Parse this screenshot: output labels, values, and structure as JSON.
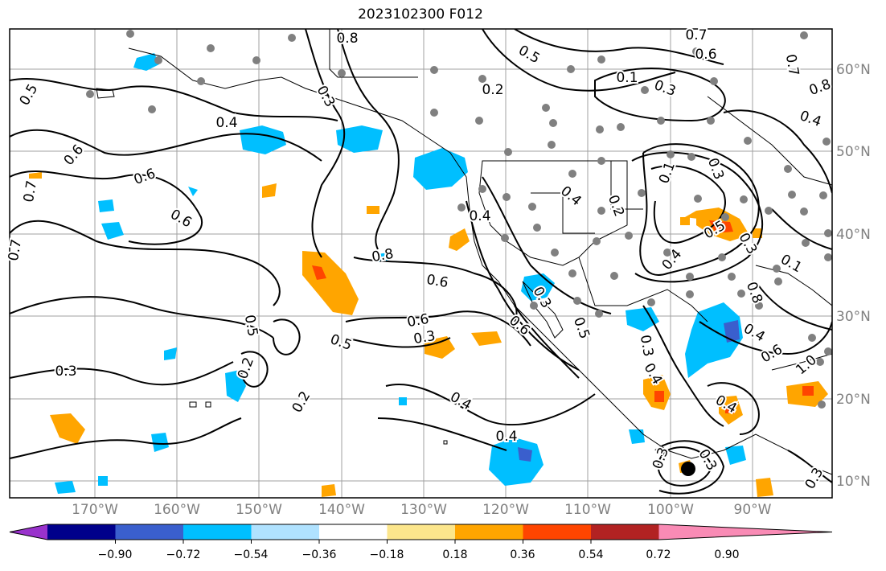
{
  "title": "2023102300 F012",
  "lat_labels": [
    "60°N",
    "50°N",
    "40°N",
    "30°N",
    "20°N",
    "10°N"
  ],
  "lon_labels": [
    "170°W",
    "160°W",
    "150°W",
    "140°W",
    "130°W",
    "120°W",
    "110°W",
    "100°W",
    "90°W"
  ],
  "colorbar": {
    "ticks": [
      "−0.90",
      "−0.72",
      "−0.54",
      "−0.36",
      "−0.18",
      "0.18",
      "0.36",
      "0.54",
      "0.72",
      "0.90"
    ],
    "colors": [
      "#9932cc",
      "#00008b",
      "#3a5fcd",
      "#00bfff",
      "#b0e2ff",
      "#ffffff",
      "#fce68c",
      "#ffa500",
      "#ff4500",
      "#b22222",
      "#f98bb5"
    ]
  },
  "contour_labels": [
    "0.8",
    "0.7",
    "0.6",
    "0.5",
    "0.4",
    "0.3",
    "0.2",
    "0.1",
    "0.8",
    "0.7",
    "0.6",
    "0.6",
    "0.6",
    "0.7",
    "0.7",
    "0.5",
    "0.3",
    "0.8",
    "0.6",
    "0.6",
    "0.5",
    "0.3",
    "0.3",
    "0.4",
    "0.4",
    "0.5",
    "0.2",
    "0.2",
    "0.6",
    "0.5",
    "0.3",
    "0.4",
    "0.4",
    "0.6",
    "0.4",
    "0.3",
    "0.3",
    "0.4",
    "0.3",
    "0.1",
    "0.3",
    "0.2",
    "0.4",
    "0.3",
    "0.4",
    "0.1",
    "1.0",
    "0.8",
    "0.5",
    "0.4",
    "0.3"
  ],
  "colors": {
    "land_line": "#000000",
    "grid": "#a0a0a0",
    "station": "#808080",
    "contour": "#000000"
  }
}
